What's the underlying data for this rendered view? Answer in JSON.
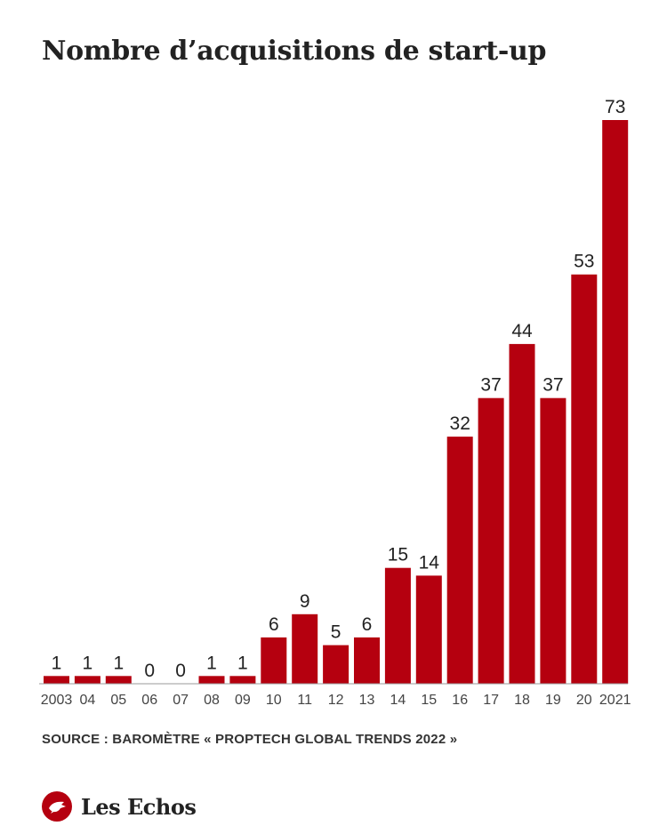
{
  "chart_data": {
    "type": "bar",
    "title": "Nombre d’acquisitions de start-up",
    "categories": [
      "2003",
      "04",
      "05",
      "06",
      "07",
      "08",
      "09",
      "10",
      "11",
      "12",
      "13",
      "14",
      "15",
      "16",
      "17",
      "18",
      "19",
      "20",
      "2021"
    ],
    "values": [
      1,
      1,
      1,
      0,
      0,
      1,
      1,
      6,
      9,
      5,
      6,
      15,
      14,
      32,
      37,
      44,
      37,
      53,
      73
    ],
    "xlabel": "",
    "ylabel": "",
    "grid": false,
    "bar_color": "#b5000f"
  },
  "source": "SOURCE : BAROMÈTRE « PROPTECH GLOBAL TRENDS 2022 »",
  "logo": {
    "text": "Les Echos",
    "icon": "les-echos-logo-icon"
  }
}
